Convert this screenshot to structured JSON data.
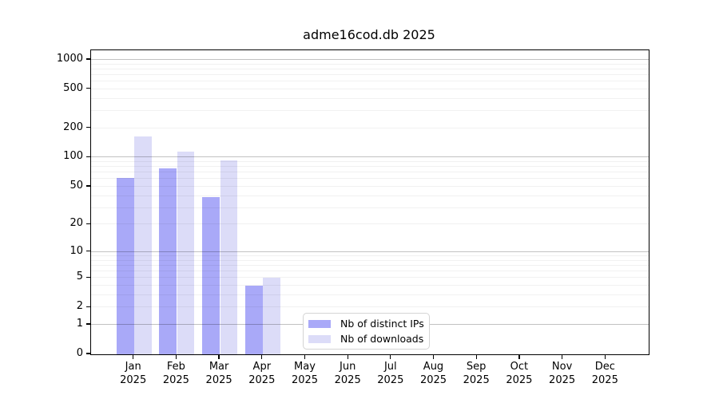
{
  "chart_data": {
    "type": "bar",
    "title": "adme16cod.db 2025",
    "year": "2025",
    "categories": [
      "Jan",
      "Feb",
      "Mar",
      "Apr",
      "May",
      "Jun",
      "Jul",
      "Aug",
      "Sep",
      "Oct",
      "Nov",
      "Dec"
    ],
    "series": [
      {
        "name": "Nb of distinct IPs",
        "color": "#a9a9f8",
        "values": [
          62,
          77,
          39,
          4,
          0,
          0,
          0,
          0,
          0,
          0,
          0,
          0
        ]
      },
      {
        "name": "Nb of downloads",
        "color": "#dcdcf8",
        "values": [
          164,
          115,
          94,
          5,
          0,
          0,
          0,
          0,
          0,
          0,
          0,
          0
        ]
      }
    ],
    "xlabel": "",
    "ylabel": "",
    "yscale": "symlog",
    "yticks": [
      0,
      1,
      2,
      5,
      10,
      20,
      50,
      100,
      200,
      500,
      1000
    ],
    "ylim": [
      0,
      1250
    ],
    "grid": "on",
    "legend_position": "lower center"
  },
  "colors": {
    "major_gridline": "rgba(0,0,0,0.24)",
    "minor_gridline": "rgba(0,0,0,0.055)",
    "spine": "#000000",
    "background": "#ffffff"
  }
}
